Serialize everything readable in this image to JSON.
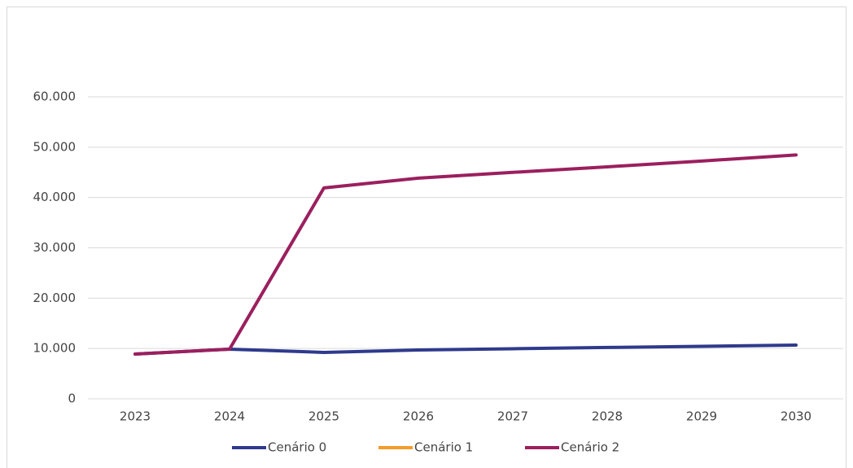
{
  "chart_data": {
    "type": "line",
    "categories": [
      "2023",
      "2024",
      "2025",
      "2026",
      "2027",
      "2028",
      "2029",
      "2030"
    ],
    "series": [
      {
        "name": "Cenário 0",
        "color": "#2e3a8c",
        "values": [
          8900,
          9870,
          9220,
          9700,
          9950,
          10200,
          10440,
          10680
        ]
      },
      {
        "name": "Cenário 1",
        "color": "#f39c2a",
        "values": [
          null,
          null,
          null,
          null,
          null,
          null,
          null,
          null
        ]
      },
      {
        "name": "Cenário 2",
        "color": "#9b1f5e",
        "values": [
          8900,
          9870,
          41900,
          43850,
          45000,
          46100,
          47250,
          48460
        ]
      }
    ],
    "ylim": [
      0,
      60000
    ],
    "yticks": [
      0,
      {
        "value": 10000,
        "label": "10.000"
      },
      {
        "value": 20000,
        "label": "20.000"
      },
      {
        "value": 30000,
        "label": "30.000"
      },
      {
        "value": 40000,
        "label": "40.000"
      },
      {
        "value": 50000,
        "label": "50.000"
      },
      {
        "value": 60000,
        "label": "60.000"
      }
    ],
    "grid": true,
    "legend": "bottom"
  }
}
